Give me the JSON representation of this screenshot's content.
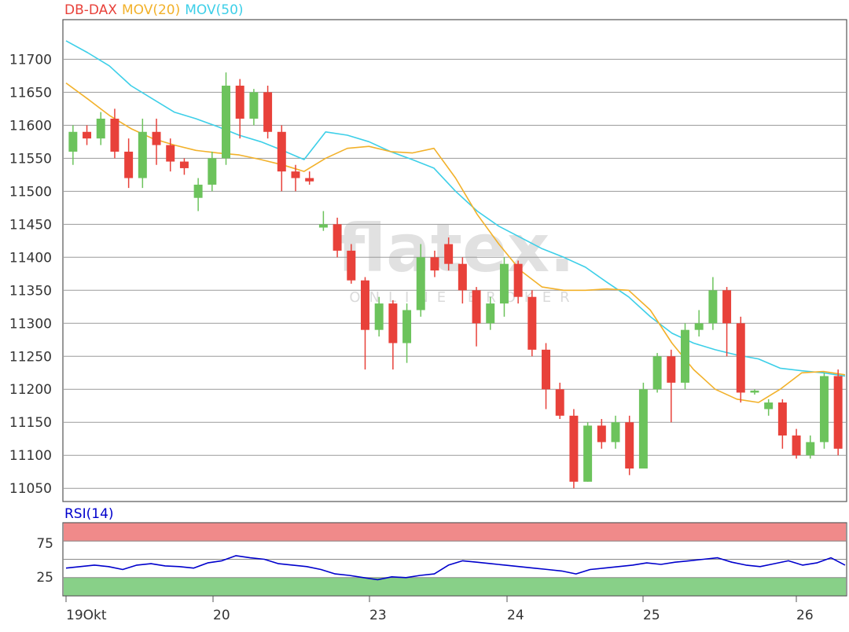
{
  "legend": {
    "instrument": "DB-DAX",
    "ma20_label": "MOV(20)",
    "ma50_label": "MOV(50)",
    "instrument_color": "#e8413a",
    "ma20_color": "#f2b12a",
    "ma50_color": "#3dcfe8"
  },
  "watermark": {
    "brand": "flatex.",
    "tagline": "ONLINE BROKER"
  },
  "rsi": {
    "label": "RSI(14)",
    "ticks": [
      "75",
      "25"
    ],
    "color": "#0000cc",
    "overbought_color": "#f08a8a",
    "oversold_color": "#88d088"
  },
  "x_axis": {
    "labels": [
      "19Okt",
      "20",
      "23",
      "24",
      "25",
      "26"
    ]
  },
  "chart_data": [
    {
      "type": "candlestick",
      "title": "DB-DAX",
      "ylim": [
        11030,
        11760
      ],
      "yticks": [
        11700,
        11650,
        11600,
        11550,
        11500,
        11450,
        11400,
        11350,
        11300,
        11250,
        11200,
        11150,
        11100,
        11050
      ],
      "up_color": "#6cc35c",
      "down_color": "#e8413a",
      "grid": true,
      "series": [
        {
          "name": "MOV(20)",
          "color": "#f2b12a",
          "values": [
            11664,
            11640,
            11615,
            11595,
            11580,
            11570,
            11562,
            11558,
            11555,
            11548,
            11540,
            11530,
            11550,
            11565,
            11568,
            11560,
            11558,
            11565,
            11520,
            11465,
            11420,
            11380,
            11355,
            11350,
            11350,
            11352,
            11350,
            11320,
            11270,
            11230,
            11200,
            11185,
            11180,
            11200,
            11225,
            11227,
            11222
          ]
        },
        {
          "name": "MOV(50)",
          "color": "#3dcfe8",
          "values": [
            11728,
            11710,
            11690,
            11660,
            11640,
            11620,
            11610,
            11598,
            11585,
            11575,
            11562,
            11548,
            11590,
            11585,
            11575,
            11560,
            11548,
            11535,
            11500,
            11470,
            11447,
            11430,
            11413,
            11400,
            11385,
            11362,
            11340,
            11310,
            11285,
            11270,
            11260,
            11252,
            11246,
            11232,
            11228,
            11225,
            11220
          ]
        }
      ],
      "candles": [
        [
          11560,
          11590,
          11540,
          11600
        ],
        [
          11590,
          11580,
          11570,
          11600
        ],
        [
          11580,
          11610,
          11570,
          11620
        ],
        [
          11610,
          11560,
          11550,
          11625
        ],
        [
          11560,
          11520,
          11505,
          11580
        ],
        [
          11520,
          11590,
          11505,
          11610
        ],
        [
          11590,
          11570,
          11540,
          11610
        ],
        [
          11570,
          11545,
          11530,
          11580
        ],
        [
          11545,
          11535,
          11525,
          11550
        ],
        [
          11490,
          11510,
          11470,
          11520
        ],
        [
          11510,
          11550,
          11500,
          11560
        ],
        [
          11550,
          11660,
          11540,
          11680
        ],
        [
          11660,
          11610,
          11580,
          11670
        ],
        [
          11610,
          11650,
          11600,
          11655
        ],
        [
          11650,
          11590,
          11580,
          11660
        ],
        [
          11590,
          11530,
          11500,
          11600
        ],
        [
          11530,
          11520,
          11500,
          11540
        ],
        [
          11520,
          11515,
          11510,
          11530
        ],
        [
          11445,
          11450,
          11440,
          11470
        ],
        [
          11450,
          11410,
          11400,
          11460
        ],
        [
          11410,
          11365,
          11360,
          11420
        ],
        [
          11365,
          11290,
          11230,
          11370
        ],
        [
          11290,
          11330,
          11280,
          11340
        ],
        [
          11330,
          11270,
          11230,
          11335
        ],
        [
          11270,
          11320,
          11240,
          11330
        ],
        [
          11320,
          11400,
          11310,
          11420
        ],
        [
          11400,
          11380,
          11370,
          11410
        ],
        [
          11420,
          11390,
          11380,
          11430
        ],
        [
          11390,
          11350,
          11330,
          11400
        ],
        [
          11350,
          11300,
          11265,
          11355
        ],
        [
          11300,
          11330,
          11290,
          11340
        ],
        [
          11330,
          11390,
          11310,
          11400
        ],
        [
          11390,
          11340,
          11330,
          11395
        ],
        [
          11340,
          11260,
          11250,
          11350
        ],
        [
          11260,
          11200,
          11170,
          11270
        ],
        [
          11200,
          11160,
          11155,
          11210
        ],
        [
          11160,
          11060,
          11050,
          11170
        ],
        [
          11060,
          11145,
          11060,
          11150
        ],
        [
          11145,
          11120,
          11110,
          11155
        ],
        [
          11120,
          11150,
          11110,
          11160
        ],
        [
          11150,
          11080,
          11070,
          11160
        ],
        [
          11080,
          11200,
          11080,
          11210
        ],
        [
          11200,
          11250,
          11195,
          11255
        ],
        [
          11250,
          11210,
          11150,
          11260
        ],
        [
          11210,
          11290,
          11200,
          11300
        ],
        [
          11290,
          11300,
          11280,
          11320
        ],
        [
          11300,
          11350,
          11290,
          11370
        ],
        [
          11350,
          11300,
          11250,
          11355
        ],
        [
          11300,
          11195,
          11180,
          11310
        ],
        [
          11195,
          11198,
          11192,
          11200
        ],
        [
          11170,
          11180,
          11160,
          11185
        ],
        [
          11180,
          11130,
          11110,
          11185
        ],
        [
          11130,
          11100,
          11095,
          11140
        ],
        [
          11100,
          11120,
          11095,
          11130
        ],
        [
          11120,
          11220,
          11110,
          11225
        ],
        [
          11220,
          11110,
          11100,
          11230
        ]
      ]
    },
    {
      "type": "line",
      "title": "RSI(14)",
      "ylim": [
        0,
        100
      ],
      "yticks": [
        75,
        25
      ],
      "bands": [
        {
          "name": "overbought",
          "from": 75,
          "to": 100,
          "color": "#f08a8a"
        },
        {
          "name": "oversold",
          "from": 0,
          "to": 25,
          "color": "#88d088"
        }
      ],
      "series": [
        {
          "name": "RSI(14)",
          "color": "#0000cc",
          "values": [
            38,
            40,
            42,
            40,
            36,
            42,
            44,
            41,
            40,
            38,
            45,
            48,
            55,
            52,
            50,
            44,
            42,
            40,
            36,
            30,
            28,
            25,
            22,
            26,
            25,
            28,
            30,
            42,
            48,
            46,
            44,
            42,
            40,
            38,
            36,
            34,
            30,
            36,
            38,
            40,
            42,
            45,
            43,
            46,
            48,
            50,
            52,
            46,
            42,
            40,
            44,
            48,
            42,
            45,
            52,
            42
          ]
        }
      ]
    }
  ]
}
